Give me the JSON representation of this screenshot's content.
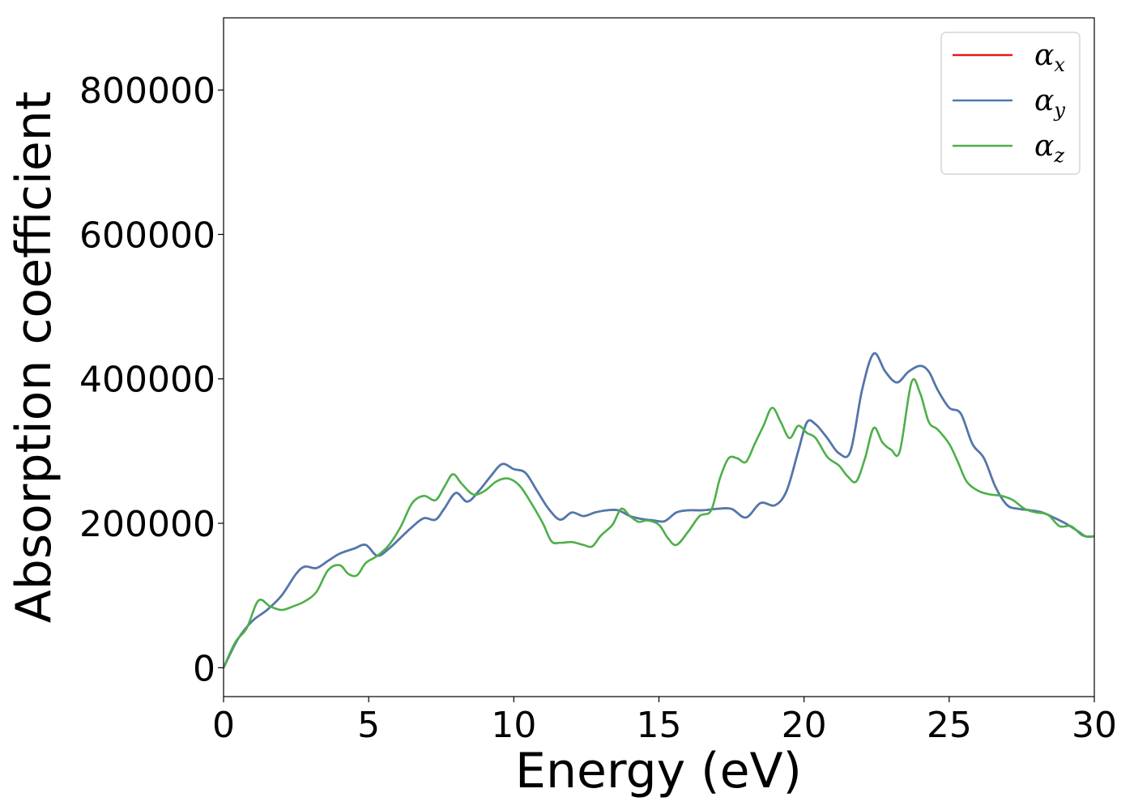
{
  "chart_data": {
    "type": "line",
    "title": "",
    "xlabel": "Energy (eV)",
    "ylabel": "Absorption coefficient",
    "xlim": [
      0,
      30
    ],
    "ylim": [
      -40000,
      900000
    ],
    "xticks": [
      0,
      5,
      10,
      15,
      20,
      25,
      30
    ],
    "yticks": [
      0,
      200000,
      400000,
      600000,
      800000
    ],
    "legend_position": "top-right",
    "grid": false,
    "colors": {
      "alpha_x": "#e41a1c",
      "alpha_y": "#4a7ab0",
      "alpha_z": "#4daf4a"
    },
    "series": [
      {
        "key": "alpha_x",
        "legend_base": "α",
        "legend_sub": "x",
        "x": [
          0,
          0.5,
          1,
          1.5,
          2,
          2.5,
          2.8,
          3.2,
          3.6,
          4,
          4.5,
          4.9,
          5.3,
          5.7,
          6.1,
          6.5,
          6.9,
          7.3,
          7.6,
          8,
          8.4,
          8.8,
          9.2,
          9.6,
          10,
          10.4,
          10.8,
          11.2,
          11.6,
          12,
          12.4,
          12.8,
          13.2,
          13.6,
          14,
          14.4,
          14.8,
          15.2,
          15.6,
          16,
          16.5,
          17,
          17.5,
          18,
          18.5,
          19,
          19.4,
          19.8,
          20.1,
          20.4,
          20.8,
          21.2,
          21.6,
          22,
          22.4,
          22.8,
          23.2,
          23.6,
          24,
          24.3,
          24.6,
          25,
          25.4,
          25.8,
          26.2,
          26.6,
          27,
          27.4,
          27.8,
          28.2,
          28.6,
          29,
          29.4,
          29.7,
          30
        ],
        "values": [
          0,
          40000,
          65000,
          80000,
          100000,
          130000,
          140000,
          138000,
          148000,
          158000,
          165000,
          170000,
          155000,
          165000,
          180000,
          195000,
          207000,
          205000,
          220000,
          242000,
          230000,
          245000,
          265000,
          282000,
          275000,
          270000,
          245000,
          220000,
          205000,
          215000,
          210000,
          215000,
          218000,
          218000,
          210000,
          206000,
          204000,
          203000,
          215000,
          218000,
          218000,
          220000,
          220000,
          208000,
          228000,
          225000,
          245000,
          300000,
          340000,
          337000,
          318000,
          297000,
          300000,
          385000,
          435000,
          410000,
          395000,
          410000,
          418000,
          410000,
          385000,
          360000,
          352000,
          310000,
          290000,
          250000,
          225000,
          220000,
          218000,
          215000,
          208000,
          200000,
          190000,
          182000,
          182000
        ]
      },
      {
        "key": "alpha_y",
        "legend_base": "α",
        "legend_sub": "y",
        "x": [
          0,
          0.5,
          1,
          1.5,
          2,
          2.5,
          2.8,
          3.2,
          3.6,
          4,
          4.5,
          4.9,
          5.3,
          5.7,
          6.1,
          6.5,
          6.9,
          7.3,
          7.6,
          8,
          8.4,
          8.8,
          9.2,
          9.6,
          10,
          10.4,
          10.8,
          11.2,
          11.6,
          12,
          12.4,
          12.8,
          13.2,
          13.6,
          14,
          14.4,
          14.8,
          15.2,
          15.6,
          16,
          16.5,
          17,
          17.5,
          18,
          18.5,
          19,
          19.4,
          19.8,
          20.1,
          20.4,
          20.8,
          21.2,
          21.6,
          22,
          22.4,
          22.8,
          23.2,
          23.6,
          24,
          24.3,
          24.6,
          25,
          25.4,
          25.8,
          26.2,
          26.6,
          27,
          27.4,
          27.8,
          28.2,
          28.6,
          29,
          29.4,
          29.7,
          30
        ],
        "values": [
          0,
          40000,
          65000,
          80000,
          100000,
          130000,
          140000,
          138000,
          148000,
          158000,
          165000,
          170000,
          155000,
          165000,
          180000,
          195000,
          207000,
          205000,
          220000,
          242000,
          230000,
          245000,
          265000,
          282000,
          275000,
          270000,
          245000,
          220000,
          205000,
          215000,
          210000,
          215000,
          218000,
          218000,
          210000,
          206000,
          204000,
          203000,
          215000,
          218000,
          218000,
          220000,
          220000,
          208000,
          228000,
          225000,
          245000,
          300000,
          340000,
          337000,
          318000,
          297000,
          300000,
          385000,
          435000,
          410000,
          395000,
          410000,
          418000,
          410000,
          385000,
          360000,
          352000,
          310000,
          290000,
          250000,
          225000,
          220000,
          218000,
          215000,
          208000,
          200000,
          190000,
          182000,
          182000
        ]
      },
      {
        "key": "alpha_z",
        "legend_base": "α",
        "legend_sub": "z",
        "x": [
          0,
          0.4,
          0.8,
          1.2,
          1.6,
          2,
          2.4,
          2.8,
          3.2,
          3.6,
          4,
          4.3,
          4.6,
          4.9,
          5.3,
          5.7,
          6.1,
          6.5,
          6.9,
          7.3,
          7.6,
          7.9,
          8.2,
          8.6,
          9,
          9.4,
          9.8,
          10.2,
          10.6,
          11,
          11.3,
          11.6,
          12,
          12.4,
          12.7,
          13,
          13.4,
          13.7,
          14,
          14.3,
          14.6,
          15,
          15.3,
          15.6,
          16,
          16.4,
          16.8,
          17.1,
          17.4,
          17.7,
          18,
          18.3,
          18.6,
          18.9,
          19.2,
          19.5,
          19.8,
          20.1,
          20.4,
          20.8,
          21.2,
          21.5,
          21.8,
          22.1,
          22.4,
          22.7,
          23,
          23.3,
          23.7,
          24,
          24.3,
          24.6,
          25,
          25.3,
          25.6,
          26,
          26.4,
          26.8,
          27.2,
          27.6,
          28,
          28.4,
          28.8,
          29.2,
          29.6,
          30
        ],
        "values": [
          0,
          35000,
          55000,
          93000,
          85000,
          80000,
          85000,
          92000,
          105000,
          135000,
          142000,
          130000,
          128000,
          145000,
          155000,
          170000,
          195000,
          228000,
          238000,
          232000,
          250000,
          268000,
          255000,
          240000,
          245000,
          258000,
          262000,
          252000,
          228000,
          200000,
          175000,
          173000,
          174000,
          170000,
          168000,
          183000,
          198000,
          220000,
          210000,
          202000,
          204000,
          198000,
          180000,
          170000,
          188000,
          210000,
          218000,
          262000,
          290000,
          290000,
          285000,
          310000,
          335000,
          360000,
          340000,
          318000,
          335000,
          325000,
          318000,
          292000,
          280000,
          265000,
          258000,
          290000,
          332000,
          312000,
          302000,
          300000,
          395000,
          380000,
          340000,
          330000,
          310000,
          285000,
          258000,
          245000,
          240000,
          238000,
          232000,
          220000,
          215000,
          212000,
          196000,
          196000,
          183000,
          182000
        ]
      }
    ]
  }
}
